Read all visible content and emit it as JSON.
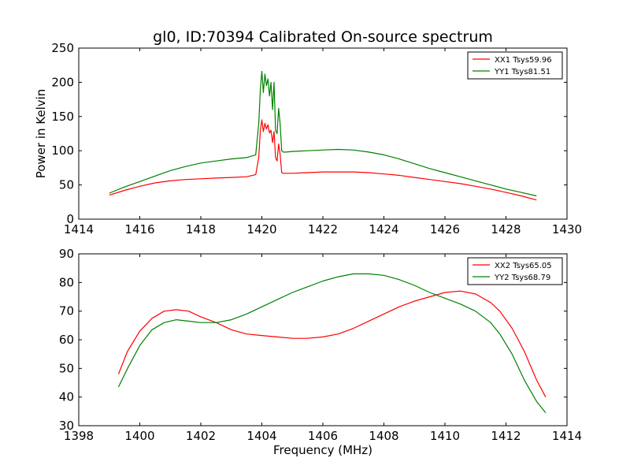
{
  "chart_data": [
    {
      "type": "line",
      "title": "gl0, ID:70394 Calibrated On-source spectrum",
      "xlabel": "",
      "ylabel": "Power in Kelvin",
      "xlim": [
        1414,
        1430
      ],
      "ylim": [
        0,
        250
      ],
      "xticks": [
        "1414",
        "1416",
        "1418",
        "1420",
        "1422",
        "1424",
        "1426",
        "1428",
        "1430"
      ],
      "yticks": [
        "0",
        "50",
        "100",
        "150",
        "200",
        "250"
      ],
      "legend_position": "top-right",
      "series": [
        {
          "name": "XX1 Tsys59.96",
          "color": "#ff0000",
          "x": [
            1415.0,
            1415.5,
            1416.0,
            1416.5,
            1417.0,
            1417.5,
            1418.0,
            1418.5,
            1419.0,
            1419.5,
            1419.8,
            1419.9,
            1419.95,
            1420.0,
            1420.05,
            1420.1,
            1420.15,
            1420.2,
            1420.25,
            1420.3,
            1420.35,
            1420.4,
            1420.45,
            1420.5,
            1420.55,
            1420.6,
            1420.65,
            1420.7,
            1420.8,
            1421.0,
            1421.5,
            1422.0,
            1422.5,
            1423.0,
            1423.5,
            1424.0,
            1424.5,
            1425.0,
            1425.5,
            1426.0,
            1426.5,
            1427.0,
            1427.5,
            1428.0,
            1428.5,
            1429.0
          ],
          "y": [
            35,
            42,
            48,
            53,
            56,
            58,
            59,
            60,
            61,
            62,
            65,
            90,
            130,
            145,
            128,
            140,
            132,
            138,
            126,
            130,
            112,
            128,
            90,
            85,
            110,
            95,
            68,
            67,
            67,
            67,
            68,
            69,
            69,
            69,
            68,
            66,
            64,
            61,
            58,
            55,
            52,
            48,
            44,
            39,
            34,
            28
          ]
        },
        {
          "name": "YY1 Tsys81.51",
          "color": "#008000",
          "x": [
            1415.0,
            1415.5,
            1416.0,
            1416.5,
            1417.0,
            1417.5,
            1418.0,
            1418.5,
            1419.0,
            1419.5,
            1419.8,
            1419.9,
            1419.95,
            1420.0,
            1420.05,
            1420.1,
            1420.15,
            1420.2,
            1420.25,
            1420.3,
            1420.35,
            1420.4,
            1420.45,
            1420.5,
            1420.55,
            1420.6,
            1420.65,
            1420.7,
            1420.8,
            1421.0,
            1421.5,
            1422.0,
            1422.5,
            1423.0,
            1423.5,
            1424.0,
            1424.5,
            1425.0,
            1425.5,
            1426.0,
            1426.5,
            1427.0,
            1427.5,
            1428.0,
            1428.5,
            1429.0
          ],
          "y": [
            38,
            47,
            55,
            63,
            71,
            77,
            82,
            85,
            88,
            90,
            94,
            140,
            190,
            216,
            185,
            212,
            195,
            205,
            180,
            200,
            160,
            200,
            130,
            125,
            162,
            140,
            100,
            98,
            98,
            99,
            100,
            101,
            102,
            101,
            98,
            94,
            88,
            81,
            74,
            68,
            62,
            56,
            50,
            44,
            39,
            34
          ]
        }
      ]
    },
    {
      "type": "line",
      "title": "",
      "xlabel": "Frequency (MHz)",
      "ylabel": "",
      "xlim": [
        1398,
        1414
      ],
      "ylim": [
        30,
        90
      ],
      "xticks": [
        "1398",
        "1400",
        "1402",
        "1404",
        "1406",
        "1408",
        "1410",
        "1412",
        "1414"
      ],
      "yticks": [
        "30",
        "40",
        "50",
        "60",
        "70",
        "80",
        "90"
      ],
      "legend_position": "top-right",
      "series": [
        {
          "name": "XX2 Tsys65.05",
          "color": "#ff0000",
          "x": [
            1399.3,
            1399.6,
            1400.0,
            1400.4,
            1400.8,
            1401.2,
            1401.6,
            1402.0,
            1402.5,
            1403.0,
            1403.5,
            1404.0,
            1404.5,
            1405.0,
            1405.5,
            1406.0,
            1406.5,
            1407.0,
            1407.5,
            1408.0,
            1408.5,
            1409.0,
            1409.5,
            1410.0,
            1410.5,
            1411.0,
            1411.5,
            1411.8,
            1412.2,
            1412.6,
            1413.0,
            1413.3
          ],
          "y": [
            48,
            56,
            63,
            67.5,
            70,
            70.5,
            70,
            68,
            66,
            63.5,
            62,
            61.5,
            61,
            60.5,
            60.5,
            61,
            62,
            64,
            66.5,
            69,
            71.5,
            73.5,
            75,
            76.5,
            77,
            76,
            73,
            70,
            64,
            56,
            46,
            40
          ]
        },
        {
          "name": "YY2 Tsys68.79",
          "color": "#008000",
          "x": [
            1399.3,
            1399.6,
            1400.0,
            1400.4,
            1400.8,
            1401.2,
            1401.6,
            1402.0,
            1402.5,
            1403.0,
            1403.5,
            1404.0,
            1404.5,
            1405.0,
            1405.5,
            1406.0,
            1406.5,
            1407.0,
            1407.5,
            1408.0,
            1408.5,
            1409.0,
            1409.5,
            1410.0,
            1410.5,
            1411.0,
            1411.5,
            1411.8,
            1412.2,
            1412.6,
            1413.0,
            1413.3
          ],
          "y": [
            43.5,
            50,
            58,
            63.5,
            66,
            67,
            66.5,
            66,
            66,
            67,
            69,
            71.5,
            74,
            76.5,
            78.5,
            80.5,
            82,
            83,
            83,
            82.5,
            81,
            79,
            76.5,
            74.5,
            72.5,
            70,
            66,
            62,
            55,
            46,
            38.5,
            34.5
          ]
        }
      ]
    }
  ]
}
